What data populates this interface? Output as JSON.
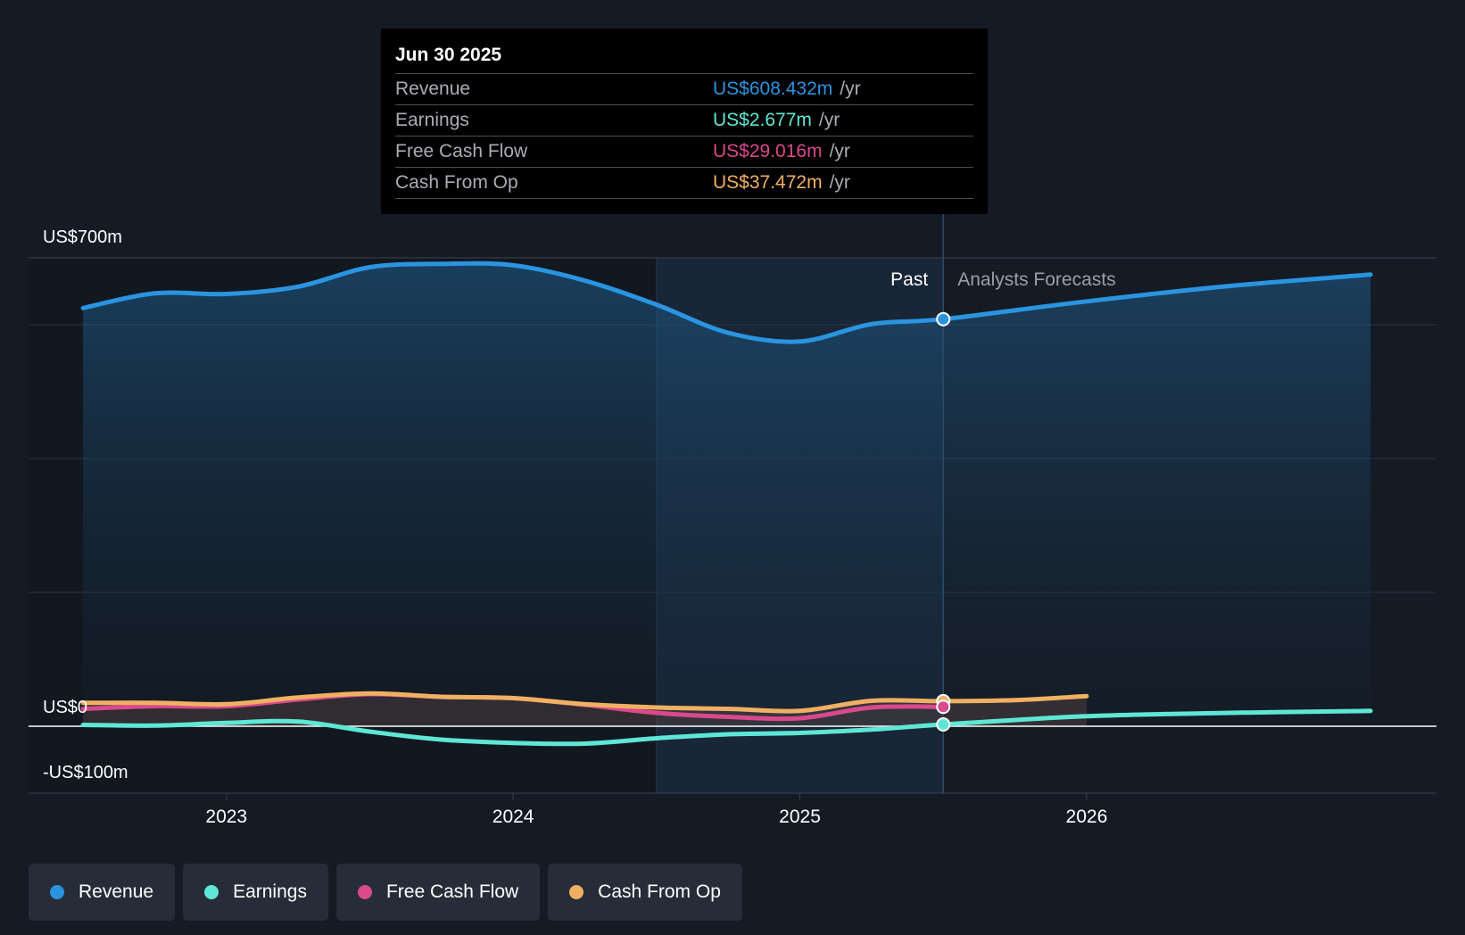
{
  "tooltip": {
    "date": "Jun 30 2025",
    "rows": [
      {
        "name": "Revenue",
        "value": "US$608.432m",
        "unit": "/yr",
        "color": "#2a94e0"
      },
      {
        "name": "Earnings",
        "value": "US$2.677m",
        "unit": "/yr",
        "color": "#5ee7d4"
      },
      {
        "name": "Free Cash Flow",
        "value": "US$29.016m",
        "unit": "/yr",
        "color": "#d9498c"
      },
      {
        "name": "Cash From Op",
        "value": "US$37.472m",
        "unit": "/yr",
        "color": "#f0b063"
      }
    ]
  },
  "legend": [
    {
      "label": "Revenue",
      "color": "#2a94e0"
    },
    {
      "label": "Earnings",
      "color": "#5ee7d4"
    },
    {
      "label": "Free Cash Flow",
      "color": "#d9498c"
    },
    {
      "label": "Cash From Op",
      "color": "#f0b063"
    }
  ],
  "chart_data": {
    "type": "line",
    "title": "",
    "xlabel": "",
    "ylabel": "",
    "x_ticks": [
      2023,
      2024,
      2025,
      2026
    ],
    "x_range": [
      2022.5,
      2026.99
    ],
    "ylim": [
      -100,
      700
    ],
    "y_tick_labels": [
      {
        "value": 700,
        "label": "US$700m"
      },
      {
        "value": 0,
        "label": "US$0"
      },
      {
        "value": -100,
        "label": "-US$100m"
      }
    ],
    "gridlines": [
      600,
      400,
      200
    ],
    "past_label": "Past",
    "forecast_label": "Analysts Forecasts",
    "highlight_range": [
      2024.5,
      2025.5
    ],
    "current_x": 2025.5,
    "series": [
      {
        "name": "Revenue",
        "color": "#2a94e0",
        "past": [
          [
            2022.5,
            625
          ],
          [
            2022.75,
            647
          ],
          [
            2023.0,
            646
          ],
          [
            2023.25,
            657
          ],
          [
            2023.5,
            686
          ],
          [
            2023.75,
            691
          ],
          [
            2024.0,
            689
          ],
          [
            2024.25,
            666
          ],
          [
            2024.5,
            630
          ],
          [
            2024.75,
            588
          ],
          [
            2025.0,
            575
          ],
          [
            2025.25,
            601
          ],
          [
            2025.5,
            608.4
          ]
        ],
        "forecast": [
          [
            2025.5,
            608.4
          ],
          [
            2026.0,
            635
          ],
          [
            2026.5,
            658
          ],
          [
            2026.99,
            675
          ]
        ]
      },
      {
        "name": "Earnings",
        "color": "#5ee7d4",
        "past": [
          [
            2022.5,
            2
          ],
          [
            2022.75,
            1
          ],
          [
            2023.0,
            5
          ],
          [
            2023.25,
            7
          ],
          [
            2023.5,
            -8
          ],
          [
            2023.75,
            -20
          ],
          [
            2024.0,
            -25
          ],
          [
            2024.25,
            -26
          ],
          [
            2024.5,
            -18
          ],
          [
            2024.75,
            -12
          ],
          [
            2025.0,
            -10
          ],
          [
            2025.25,
            -5
          ],
          [
            2025.5,
            2.7
          ]
        ],
        "forecast": [
          [
            2025.5,
            2.7
          ],
          [
            2026.0,
            15
          ],
          [
            2026.5,
            20
          ],
          [
            2026.99,
            23
          ]
        ]
      },
      {
        "name": "Free Cash Flow",
        "color": "#d9498c",
        "past": [
          [
            2022.5,
            26
          ],
          [
            2022.75,
            30
          ],
          [
            2023.0,
            30
          ],
          [
            2023.25,
            40
          ],
          [
            2023.5,
            48
          ],
          [
            2023.75,
            44
          ],
          [
            2024.0,
            42
          ],
          [
            2024.25,
            32
          ],
          [
            2024.5,
            20
          ],
          [
            2024.75,
            14
          ],
          [
            2025.0,
            12
          ],
          [
            2025.25,
            28
          ],
          [
            2025.5,
            29.0
          ]
        ],
        "forecast": []
      },
      {
        "name": "Cash From Op",
        "color": "#f0b063",
        "past": [
          [
            2022.5,
            35
          ],
          [
            2022.75,
            35
          ],
          [
            2023.0,
            33
          ],
          [
            2023.25,
            43
          ],
          [
            2023.5,
            49
          ],
          [
            2023.75,
            44
          ],
          [
            2024.0,
            42
          ],
          [
            2024.25,
            33
          ],
          [
            2024.5,
            28
          ],
          [
            2024.75,
            26
          ],
          [
            2025.0,
            23
          ],
          [
            2025.25,
            38
          ],
          [
            2025.5,
            37.5
          ]
        ],
        "forecast": [
          [
            2025.5,
            37.5
          ],
          [
            2025.75,
            39
          ],
          [
            2026.0,
            45
          ]
        ]
      }
    ]
  }
}
